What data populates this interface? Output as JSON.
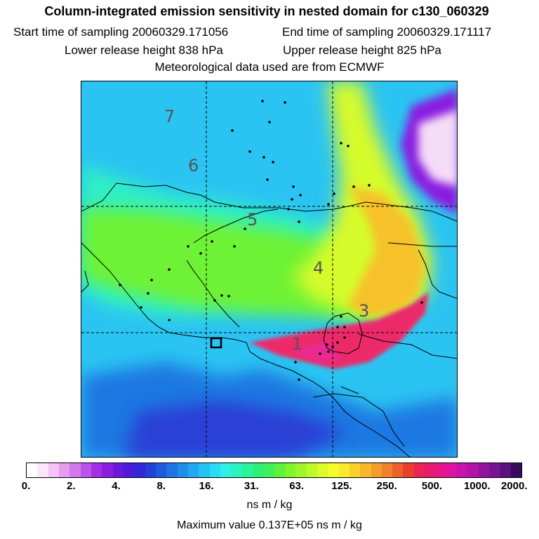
{
  "header": {
    "title": "Column-integrated emission sensitivity in nested domain for c130_060329",
    "start_label": "Start time of sampling 20060329.171056",
    "end_label": "End time of sampling 20060329.171117",
    "lower_label": "Lower release height  838 hPa",
    "upper_label": "Upper release height  825 hPa",
    "met_label": "Meteorological data used are from ECMWF"
  },
  "map": {
    "day_labels": [
      "7",
      "6",
      "5",
      "4",
      "3",
      "1"
    ],
    "receptor_marker": "square-box"
  },
  "colorbar": {
    "colors": [
      "#ffffff",
      "#fde6fc",
      "#f5c4f6",
      "#e79cf0",
      "#d277ec",
      "#bb52ea",
      "#a32fe4",
      "#8a1ee0",
      "#6b18dd",
      "#4d1bd9",
      "#3428d6",
      "#2440d8",
      "#1e5ade",
      "#1d74e4",
      "#1f8eea",
      "#22a8f0",
      "#25c2f4",
      "#2bdbf4",
      "#2ef0e6",
      "#2bf3c0",
      "#2af39a",
      "#2ef078",
      "#3ef05a",
      "#5ef23e",
      "#7ef52f",
      "#9ef72a",
      "#befa2a",
      "#dcfb2b",
      "#f6fb2c",
      "#fbe92b",
      "#f9d12a",
      "#f6b82a",
      "#f39d29",
      "#f08029",
      "#ee6029",
      "#ec3e2d",
      "#ea2650",
      "#e81c6e",
      "#e6178a",
      "#dd14a0",
      "#c814a8",
      "#b014a8",
      "#9414a0",
      "#781494",
      "#5a1080",
      "#3a0a60"
    ],
    "ticks": [
      "0.",
      "2.",
      "4.",
      "8.",
      "16.",
      "31.",
      "63.",
      "125.",
      "250.",
      "500.",
      "1000.",
      "2000."
    ],
    "units": "ns m / kg",
    "max_value_label": "Maximum value  0.137E+05 ns m / kg"
  }
}
